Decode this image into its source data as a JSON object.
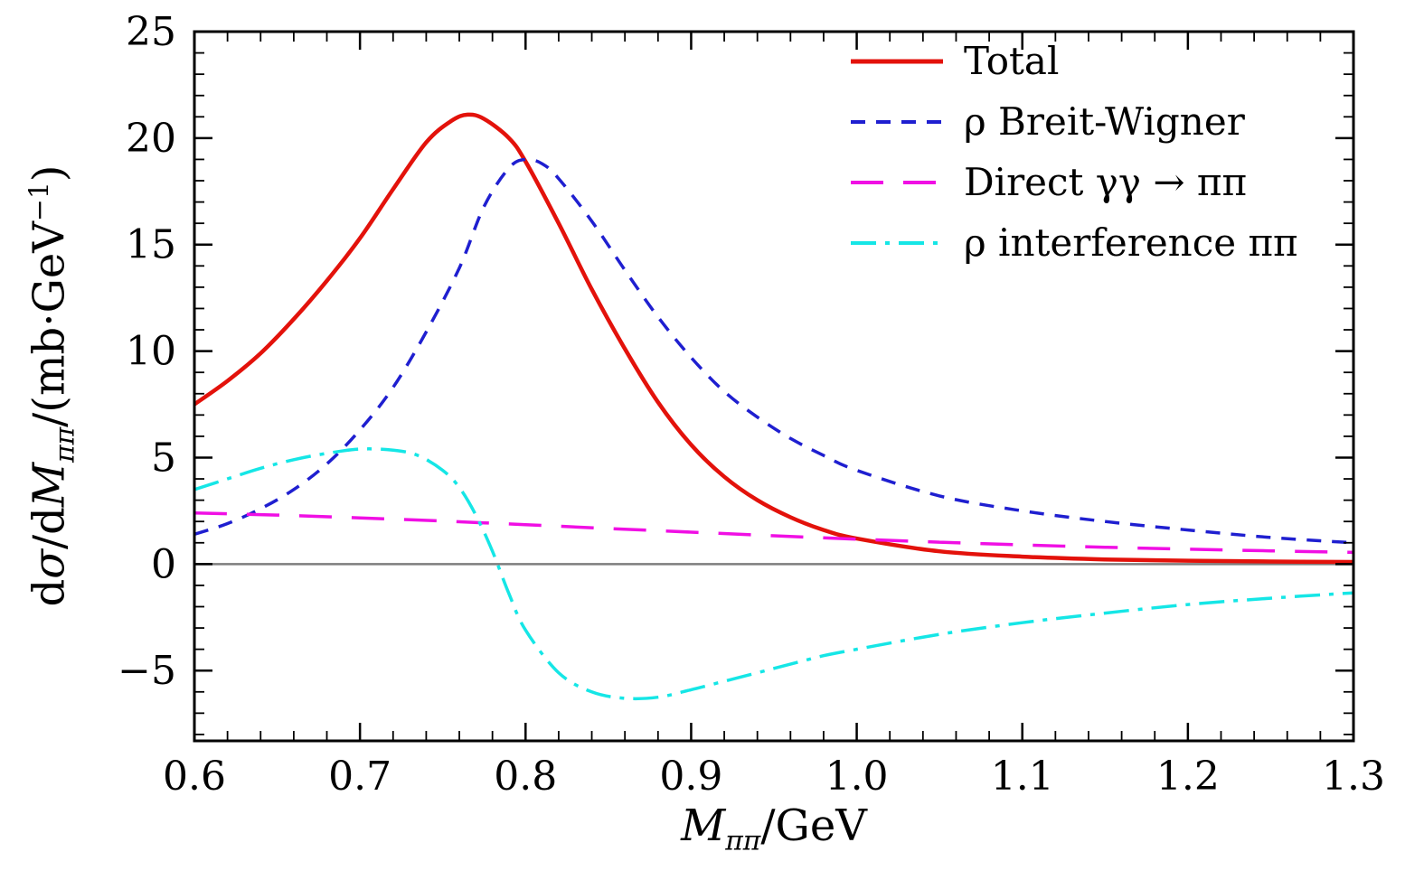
{
  "figure": {
    "background": "#ffffff",
    "frame_color": "#000000"
  },
  "chart_data": {
    "type": "line",
    "title": "",
    "xlabel": {
      "main": "M",
      "sub": "ππ",
      "rest": "/GeV"
    },
    "ylabel": {
      "d1": "d",
      "sigma": "σ",
      "d2": "/d",
      "M": "M",
      "sub": "ππ",
      "rest": "/(mb·GeV",
      "sup": "−1",
      "close": ")"
    },
    "xlim": [
      0.6,
      1.3
    ],
    "ylim": [
      -8.3,
      25
    ],
    "grid": false,
    "legend_position": "top-right",
    "zero_line": {
      "y": 0,
      "color": "#7d7d7d"
    },
    "xticks": {
      "major": [
        0.6,
        0.7,
        0.8,
        0.9,
        1.0,
        1.1,
        1.2,
        1.3
      ],
      "labels": [
        "0.6",
        "0.7",
        "0.8",
        "0.9",
        "1.0",
        "1.1",
        "1.2",
        "1.3"
      ],
      "minor_step": 0.02
    },
    "yticks": {
      "major": [
        -5,
        0,
        5,
        10,
        15,
        20,
        25
      ],
      "labels": [
        "−5",
        "0",
        "5",
        "10",
        "15",
        "20",
        "25"
      ],
      "minor_step": 1
    },
    "series": [
      {
        "name": "Total",
        "color": "#e3120b",
        "style": "solid",
        "dash": "",
        "width": 4.5,
        "x": [
          0.6,
          0.62,
          0.64,
          0.66,
          0.68,
          0.7,
          0.72,
          0.74,
          0.755,
          0.765,
          0.775,
          0.79,
          0.8,
          0.82,
          0.84,
          0.86,
          0.88,
          0.9,
          0.92,
          0.94,
          0.96,
          0.98,
          1.0,
          1.05,
          1.1,
          1.15,
          1.2,
          1.25,
          1.3
        ],
        "y": [
          7.5,
          8.6,
          9.9,
          11.5,
          13.3,
          15.3,
          17.6,
          19.8,
          20.8,
          21.1,
          20.9,
          20.0,
          18.9,
          16.0,
          12.9,
          10.1,
          7.6,
          5.6,
          4.1,
          3.0,
          2.2,
          1.6,
          1.2,
          0.6,
          0.35,
          0.22,
          0.16,
          0.12,
          0.1
        ]
      },
      {
        "name": "ρ Breit-Wigner",
        "color": "#1f1fd0",
        "style": "dashed",
        "dash": "16 12",
        "width": 3.5,
        "x": [
          0.6,
          0.62,
          0.64,
          0.66,
          0.68,
          0.7,
          0.72,
          0.74,
          0.76,
          0.775,
          0.79,
          0.8,
          0.81,
          0.82,
          0.84,
          0.86,
          0.88,
          0.9,
          0.92,
          0.94,
          0.96,
          0.98,
          1.0,
          1.05,
          1.1,
          1.15,
          1.2,
          1.25,
          1.3
        ],
        "y": [
          1.4,
          1.9,
          2.6,
          3.5,
          4.7,
          6.3,
          8.3,
          10.9,
          13.9,
          16.8,
          18.6,
          19.0,
          18.8,
          18.1,
          16.1,
          13.8,
          11.6,
          9.7,
          8.1,
          6.9,
          5.9,
          5.1,
          4.4,
          3.2,
          2.5,
          2.0,
          1.6,
          1.25,
          1.0
        ]
      },
      {
        "name": "Direct γγ → ππ",
        "color": "#f00fe4",
        "style": "long-dash",
        "dash": "36 22",
        "width": 3.5,
        "x": [
          0.6,
          0.65,
          0.7,
          0.75,
          0.8,
          0.85,
          0.9,
          0.95,
          1.0,
          1.05,
          1.1,
          1.15,
          1.2,
          1.25,
          1.3
        ],
        "y": [
          2.4,
          2.3,
          2.17,
          2.02,
          1.85,
          1.67,
          1.5,
          1.33,
          1.17,
          1.03,
          0.9,
          0.79,
          0.7,
          0.62,
          0.55
        ]
      },
      {
        "name": "ρ interference ππ",
        "color": "#15e6e6",
        "style": "dash-dot",
        "dash": "28 10 5 10",
        "width": 3.5,
        "x": [
          0.6,
          0.62,
          0.64,
          0.66,
          0.68,
          0.7,
          0.72,
          0.735,
          0.75,
          0.76,
          0.77,
          0.78,
          0.79,
          0.8,
          0.82,
          0.84,
          0.86,
          0.88,
          0.9,
          0.92,
          0.94,
          0.96,
          0.98,
          1.0,
          1.05,
          1.1,
          1.15,
          1.2,
          1.25,
          1.3
        ],
        "y": [
          3.5,
          4.0,
          4.5,
          4.9,
          5.2,
          5.4,
          5.35,
          5.1,
          4.4,
          3.6,
          2.3,
          0.6,
          -1.4,
          -3.1,
          -5.1,
          -6.0,
          -6.3,
          -6.25,
          -5.9,
          -5.5,
          -5.1,
          -4.7,
          -4.3,
          -4.0,
          -3.3,
          -2.75,
          -2.3,
          -1.9,
          -1.6,
          -1.35
        ]
      }
    ]
  }
}
